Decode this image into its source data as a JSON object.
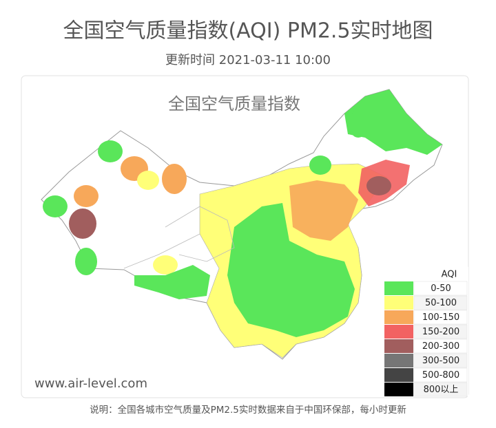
{
  "header": {
    "title": "全国空气质量指数(AQI) PM2.5实时地图",
    "updated": "更新时间 2021-03-11 10:00"
  },
  "map": {
    "title": "全国空气质量指数",
    "legend": {
      "title": "AQI",
      "items": [
        {
          "label": "0-50",
          "color": "#5ae65a"
        },
        {
          "label": "50-100",
          "color": "#ffff78"
        },
        {
          "label": "100-150",
          "color": "#f7a85a"
        },
        {
          "label": "150-200",
          "color": "#f26262"
        },
        {
          "label": "200-300",
          "color": "#a15e5e"
        },
        {
          "label": "300-500",
          "color": "#767676"
        },
        {
          "label": "500-800",
          "color": "#444444"
        },
        {
          "label": "800以上",
          "color": "#000000"
        }
      ]
    },
    "watermark": "www.air-level.com"
  },
  "footer": "说明：全国各城市空气质量及PM2.5实时数据来自于中国环保部，每小时更新"
}
